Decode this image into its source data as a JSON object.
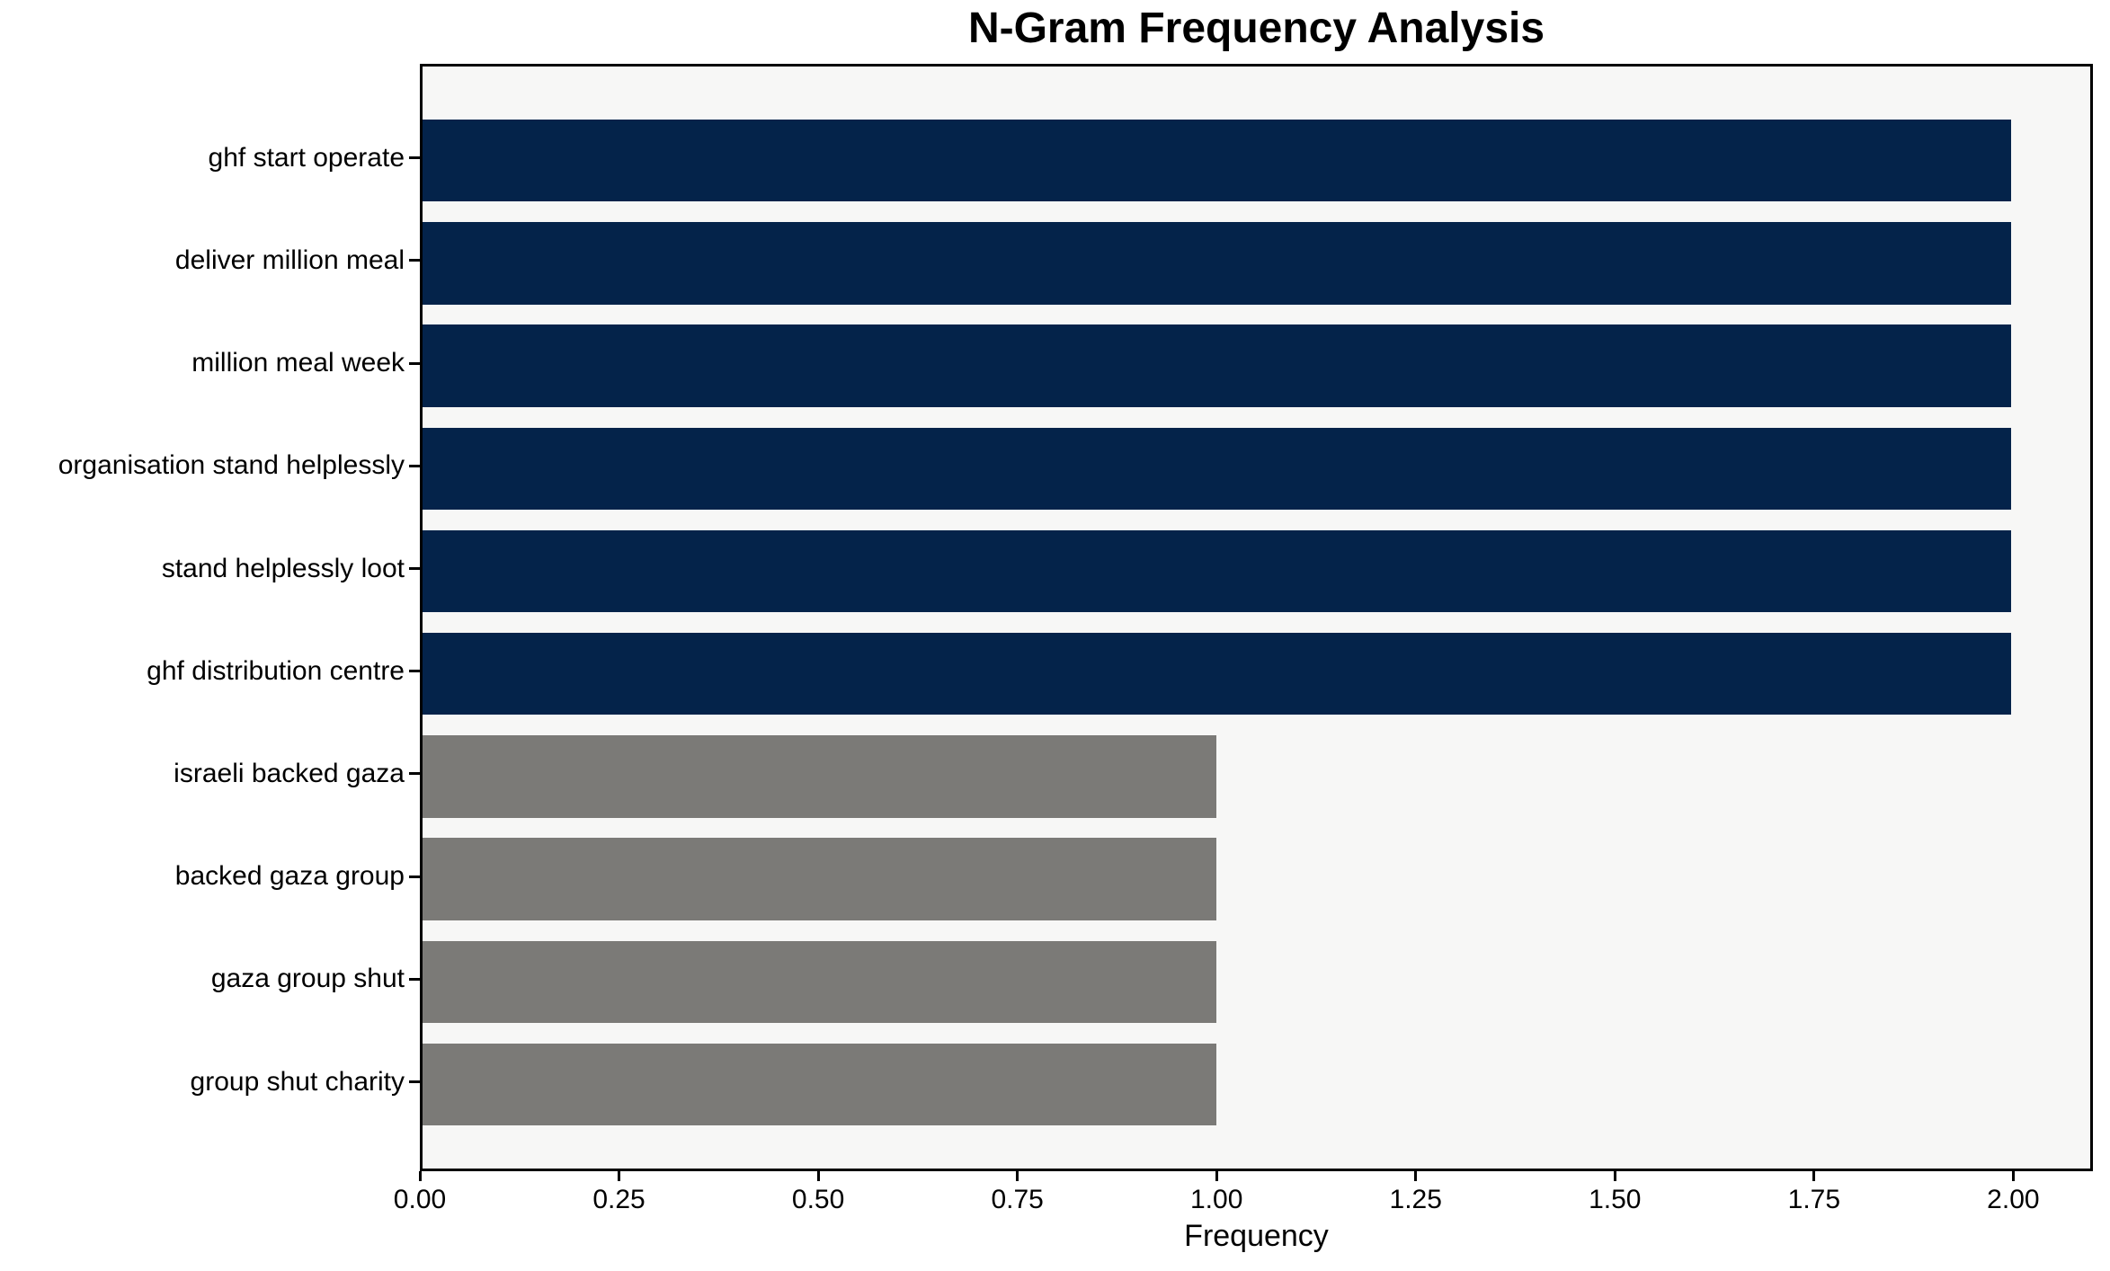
{
  "chart_data": {
    "type": "bar",
    "orientation": "horizontal",
    "title": "N-Gram Frequency Analysis",
    "xlabel": "Frequency",
    "ylabel": "",
    "categories": [
      "ghf start operate",
      "deliver million meal",
      "million meal week",
      "organisation stand helplessly",
      "stand helplessly loot",
      "ghf distribution centre",
      "israeli backed gaza",
      "backed gaza group",
      "gaza group shut",
      "group shut charity"
    ],
    "values": [
      2,
      2,
      2,
      2,
      2,
      2,
      1,
      1,
      1,
      1
    ],
    "bar_colors": [
      "#04234a",
      "#04234a",
      "#04234a",
      "#04234a",
      "#04234a",
      "#04234a",
      "#7b7a77",
      "#7b7a77",
      "#7b7a77",
      "#7b7a77"
    ],
    "xlim": [
      0,
      2.1
    ],
    "xticks": [
      0,
      0.25,
      0.5,
      0.75,
      1.0,
      1.25,
      1.5,
      1.75,
      2.0
    ],
    "xtick_labels": [
      "0.00",
      "0.25",
      "0.50",
      "0.75",
      "1.00",
      "1.25",
      "1.50",
      "1.75",
      "2.00"
    ],
    "grid": false,
    "legend": null,
    "colors": {
      "bar_high": "#04234a",
      "bar_low": "#7b7a77",
      "plot_background": "#f7f7f6",
      "figure_background": "#ffffff",
      "axis": "#000000"
    }
  }
}
